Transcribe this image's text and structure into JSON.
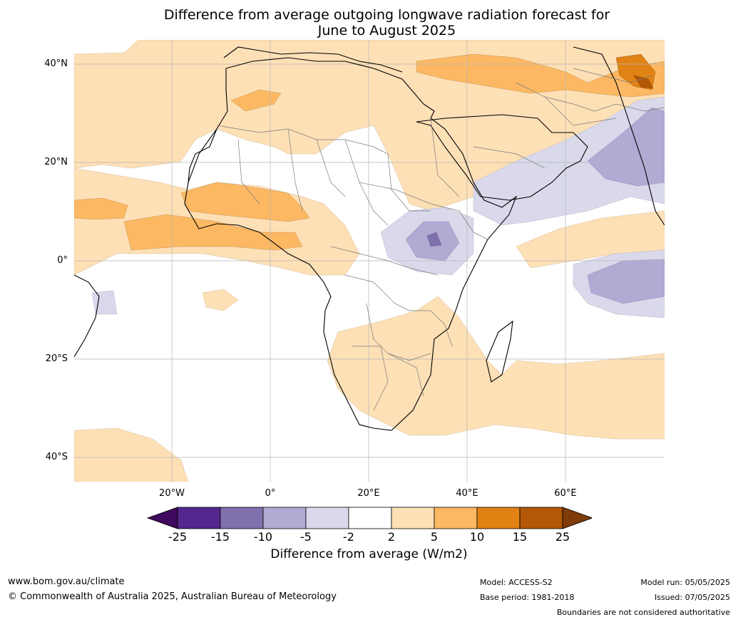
{
  "title_line1": "Difference from average outgoing longwave radiation forecast for",
  "title_line2": "June to August 2025",
  "lat_labels": [
    "40°N",
    "20°N",
    "0°",
    "20°S",
    "40°S"
  ],
  "lon_labels": [
    "20°W",
    "0°",
    "20°E",
    "40°E",
    "60°E"
  ],
  "colorbar": {
    "ticks": [
      "-25",
      "-15",
      "-10",
      "-5",
      "-2",
      "2",
      "5",
      "10",
      "15",
      "25"
    ],
    "colors": [
      "#3f0a5e",
      "#54278f",
      "#8071ad",
      "#b1aad3",
      "#d9d9eb",
      "#ffffff",
      "#fee0b6",
      "#fdb863",
      "#e08214",
      "#b35806",
      "#7f3b08"
    ],
    "label": "Difference from average (W/m2)"
  },
  "footer": {
    "url": "www.bom.gov.au/climate",
    "copyright": "© Commonwealth of Australia 2025, Australian Bureau of Meteorology",
    "model": "Model: ACCESS-S2",
    "base_period": "Base period: 1981-2018",
    "model_run": "Model run: 05/05/2025",
    "issued": "Issued: 07/05/2025",
    "disclaimer": "Boundaries are not considered authoritative"
  }
}
